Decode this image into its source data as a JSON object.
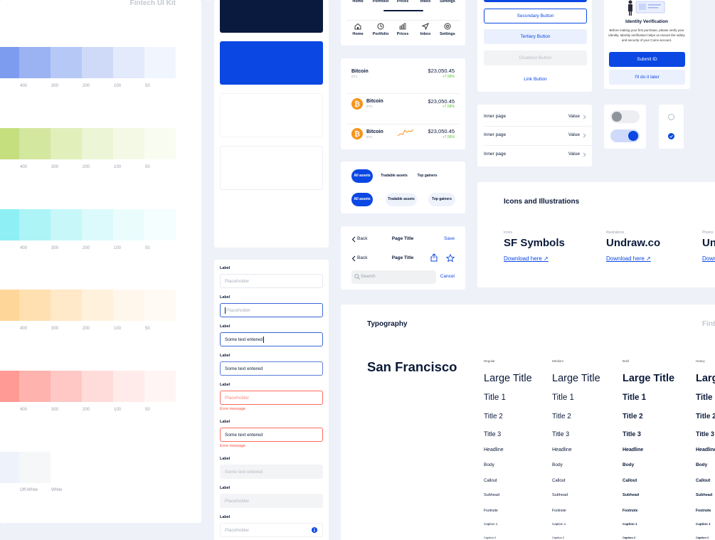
{
  "header": {
    "title": "Fintech UI Kit"
  },
  "palette": {
    "shades": [
      "400",
      "300",
      "200",
      "100",
      "50"
    ],
    "neutrals": [
      "Off-White",
      "White"
    ]
  },
  "tab_bar": {
    "tabs": [
      "Home",
      "Portfolio",
      "Prices",
      "Inbox",
      "Settings"
    ]
  },
  "assets": {
    "rows": [
      {
        "name": "Bitcoin",
        "ticker": "BTC",
        "price": "$23,050.45",
        "change": "+7.58%",
        "icon": false,
        "chart": false
      },
      {
        "name": "Bitcoin",
        "ticker": "BTC",
        "price": "$23,050.45",
        "change": "+7.58%",
        "icon": true,
        "chart": false
      },
      {
        "name": "Bitcoin",
        "ticker": "BTC",
        "price": "$23,050.45",
        "change": "+7.58%",
        "icon": true,
        "chart": true
      }
    ]
  },
  "chips": [
    "All assets",
    "Tradable assets",
    "Top gainers"
  ],
  "navigation": {
    "back": "Back",
    "title": "Page Title",
    "save": "Save",
    "search": "Search",
    "cancel": "Cancel"
  },
  "buttons": [
    "Secondary Button",
    "Tertiary Button",
    "Disabled Button",
    "Link Button"
  ],
  "list": {
    "rows": [
      {
        "label": "Inner page",
        "value": "Value"
      },
      {
        "label": "Inner page",
        "value": "Value"
      },
      {
        "label": "Inner page",
        "value": "Value"
      }
    ]
  },
  "identity": {
    "title": "Identity Verification",
    "body": "Before making your first purchase, please verify your identity. Identity verification helps us ensure the safety and security of your Coins account.",
    "submit": "Submit ID",
    "later": "I'll do it later"
  },
  "form": {
    "fields": [
      {
        "label": "Label",
        "text": "Placeholder",
        "state": "default"
      },
      {
        "label": "Label",
        "text": "Placeholder",
        "state": "focused"
      },
      {
        "label": "Label",
        "text": "Some text entered",
        "state": "typing"
      },
      {
        "label": "Label",
        "text": "Some text entered",
        "state": "filled"
      },
      {
        "label": "Label",
        "text": "Placeholder",
        "state": "error",
        "error": "Error message"
      },
      {
        "label": "Label",
        "text": "Some text entered",
        "state": "error-filled",
        "error": "Error message"
      },
      {
        "label": "Label",
        "text": "Some text entered",
        "state": "disabled"
      },
      {
        "label": "Label",
        "text": "Placeholder",
        "state": "disabled"
      },
      {
        "label": "Label",
        "text": "Placeholder",
        "state": "info"
      }
    ]
  },
  "resources": {
    "title": "Icons and Illustrations",
    "link": "Download here ↗",
    "items": [
      {
        "kind": "Icons",
        "name": "SF Symbols"
      },
      {
        "kind": "Illustrations",
        "name": "Undraw.co"
      },
      {
        "kind": "Photos",
        "name": "Unsplash"
      }
    ]
  },
  "typography": {
    "title": "Typography",
    "family": "San Francisco",
    "weights": [
      "Regular",
      "Medium",
      "Bold",
      "Heavy"
    ],
    "styles": [
      "Large Title",
      "Title 1",
      "Title 2",
      "Title 3",
      "Headline",
      "Body",
      "Callout",
      "Subhead",
      "Footnote",
      "Caption 1",
      "Caption 2"
    ]
  }
}
